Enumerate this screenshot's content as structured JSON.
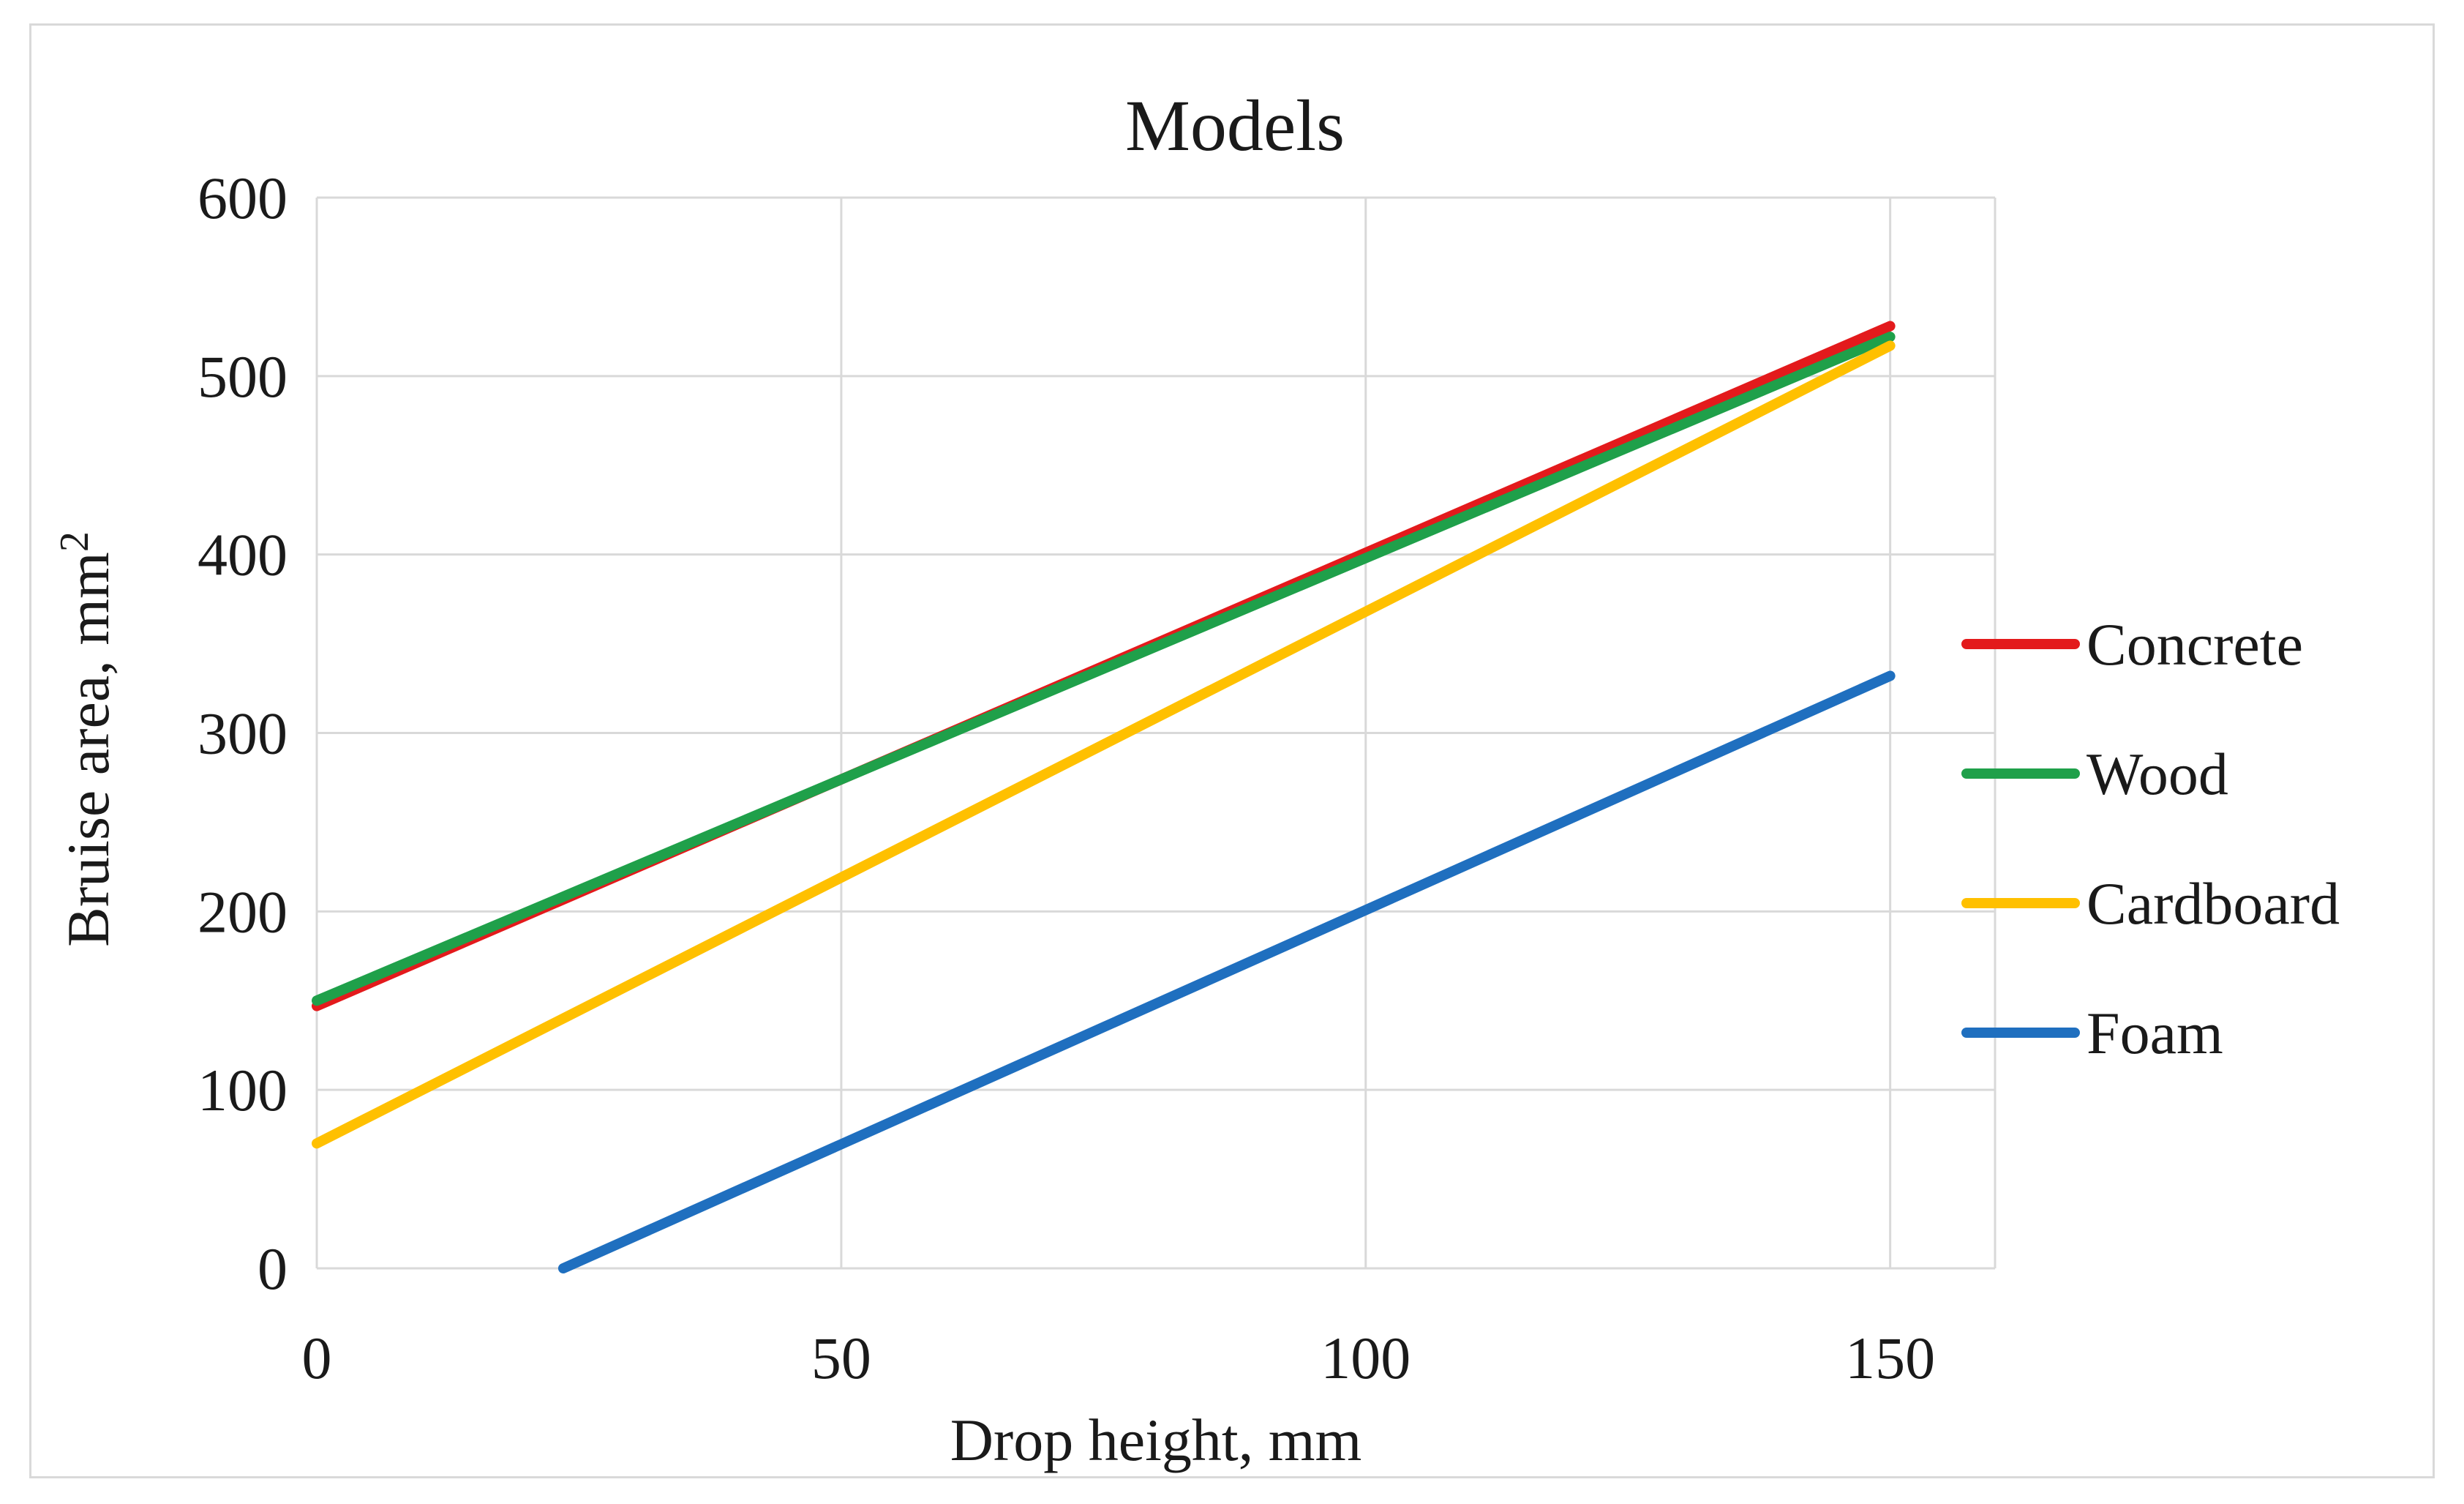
{
  "chart_data": {
    "type": "line",
    "title": "Models",
    "xlabel": "Drop height, mm",
    "ylabel": "Bruise area, mm",
    "ylabel_superscript": "2",
    "xlim": [
      0,
      160
    ],
    "ylim": [
      0,
      600
    ],
    "xticks": [
      0,
      50,
      100,
      150
    ],
    "yticks": [
      0,
      100,
      200,
      300,
      400,
      500,
      600
    ],
    "grid": true,
    "legend_position": "right",
    "series": [
      {
        "name": "Concrete",
        "color": "#e31a1c",
        "x": [
          0,
          150
        ],
        "y": [
          147,
          528
        ]
      },
      {
        "name": "Wood",
        "color": "#1fa04a",
        "x": [
          0,
          150
        ],
        "y": [
          150,
          522
        ]
      },
      {
        "name": "Cardboard",
        "color": "#ffc000",
        "x": [
          0,
          150
        ],
        "y": [
          70,
          517
        ]
      },
      {
        "name": "Foam",
        "color": "#1f6fbf",
        "x": [
          23.5,
          150
        ],
        "y": [
          0,
          332
        ]
      }
    ]
  }
}
